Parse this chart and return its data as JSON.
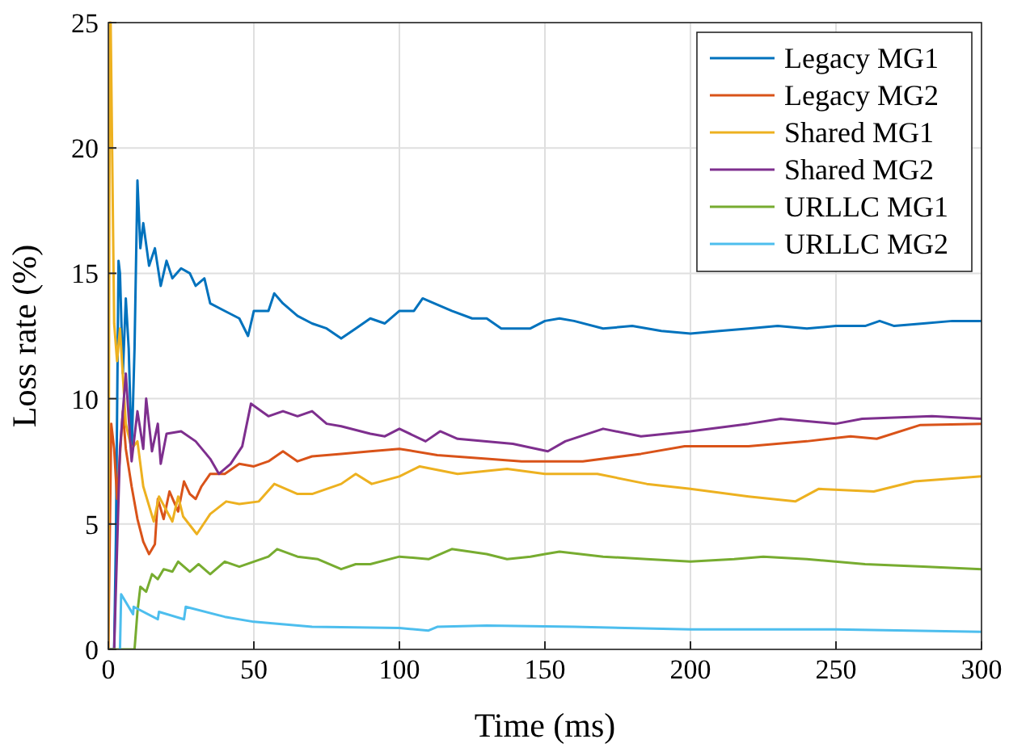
{
  "chart_data": {
    "type": "line",
    "xlabel": "Time (ms)",
    "ylabel": "Loss rate (%)",
    "xlim": [
      0,
      300
    ],
    "ylim": [
      0,
      25
    ],
    "xticks": [
      0,
      50,
      100,
      150,
      200,
      250,
      300
    ],
    "yticks": [
      0,
      5,
      10,
      15,
      20,
      25
    ],
    "grid": true,
    "legend": "top right",
    "line_style": "solid",
    "marker": "none",
    "series": [
      {
        "name": "Legacy MG1",
        "color": "#0072bd",
        "x": [
          0,
          2,
          2.6,
          3.5,
          4,
          5,
          6,
          7,
          8,
          9,
          10,
          11,
          12,
          14,
          16,
          18,
          20,
          22,
          25,
          28,
          30,
          33,
          35,
          40,
          45,
          48,
          50,
          55,
          57,
          60,
          65,
          70,
          75,
          80,
          85,
          90,
          95,
          100,
          105,
          108,
          112,
          118,
          125,
          130,
          135,
          145,
          150,
          155,
          160,
          170,
          180,
          190,
          200,
          210,
          220,
          230,
          240,
          250,
          260,
          265,
          270,
          280,
          290,
          300
        ],
        "values": [
          0,
          0,
          4.4,
          15.5,
          15,
          11,
          14,
          12,
          7.8,
          12,
          18.7,
          16,
          17,
          15.3,
          16,
          14.5,
          15.5,
          14.8,
          15.2,
          15,
          14.5,
          14.8,
          13.8,
          13.5,
          13.2,
          12.5,
          13.5,
          13.5,
          14.2,
          13.8,
          13.3,
          13,
          12.8,
          12.4,
          12.8,
          13.2,
          13,
          13.5,
          13.5,
          14,
          13.8,
          13.5,
          13.2,
          13.2,
          12.8,
          12.8,
          13.1,
          13.2,
          13.1,
          12.8,
          12.9,
          12.7,
          12.6,
          12.7,
          12.8,
          12.9,
          12.8,
          12.9,
          12.9,
          13.1,
          12.9,
          13,
          13.1,
          13.1
        ]
      },
      {
        "name": "Legacy MG2",
        "color": "#d95319",
        "x": [
          0,
          1,
          2,
          3,
          5,
          6,
          8,
          10,
          12,
          14,
          16,
          17,
          19,
          21,
          24,
          26,
          28,
          30,
          32,
          35,
          40,
          45,
          50,
          55,
          60,
          65,
          70,
          80,
          90,
          100,
          113,
          130,
          142,
          163,
          183,
          198,
          220,
          240,
          255,
          264,
          279,
          300
        ],
        "values": [
          0,
          9,
          8,
          6,
          9.5,
          8,
          6.5,
          5.2,
          4.3,
          3.8,
          4.2,
          6,
          5.2,
          6.3,
          5.5,
          6.7,
          6.2,
          6,
          6.5,
          7,
          7,
          7.4,
          7.3,
          7.5,
          7.9,
          7.5,
          7.7,
          7.8,
          7.9,
          8,
          7.75,
          7.6,
          7.5,
          7.5,
          7.8,
          8.1,
          8.1,
          8.3,
          8.5,
          8.4,
          8.95,
          9
        ]
      },
      {
        "name": "Shared MG1",
        "color": "#edb120",
        "x": [
          0,
          0.5,
          0.8,
          2,
          3,
          4,
          6,
          8,
          10,
          12,
          15.6,
          17.4,
          22,
          24,
          25.7,
          30.4,
          35,
          40.5,
          45,
          51.7,
          57,
          65,
          70,
          80,
          85,
          90.5,
          100,
          107,
          120,
          137,
          150,
          168,
          185,
          200,
          220,
          236,
          244,
          263,
          277,
          300
        ],
        "values": [
          0,
          25,
          25,
          13,
          11.5,
          12.8,
          9,
          8,
          8.3,
          6.5,
          5.1,
          6.1,
          5.1,
          6.1,
          5.3,
          4.6,
          5.4,
          5.9,
          5.8,
          5.9,
          6.6,
          6.2,
          6.2,
          6.6,
          7,
          6.6,
          6.9,
          7.3,
          7,
          7.2,
          7,
          7,
          6.6,
          6.4,
          6.1,
          5.9,
          6.4,
          6.3,
          6.7,
          6.9
        ]
      },
      {
        "name": "Shared MG2",
        "color": "#7e2f8e",
        "x": [
          0,
          2,
          3,
          4,
          6,
          8,
          10,
          12,
          13,
          15,
          17,
          18,
          20,
          25,
          30,
          35,
          38,
          42,
          46,
          49,
          55,
          60,
          65,
          70,
          75,
          80,
          90,
          95,
          100,
          109,
          114,
          120,
          139,
          151,
          157,
          170,
          183,
          200,
          220,
          231,
          250,
          259,
          283,
          300
        ],
        "values": [
          0,
          0,
          4,
          8,
          11,
          7.5,
          9.5,
          8,
          10,
          7.9,
          9,
          7.4,
          8.6,
          8.7,
          8.3,
          7.6,
          7,
          7.4,
          8.1,
          9.8,
          9.3,
          9.5,
          9.3,
          9.5,
          9,
          8.9,
          8.6,
          8.5,
          8.8,
          8.3,
          8.7,
          8.4,
          8.2,
          7.9,
          8.3,
          8.8,
          8.5,
          8.7,
          9,
          9.2,
          9,
          9.2,
          9.3,
          9.2
        ]
      },
      {
        "name": "URLLC MG1",
        "color": "#77ac30",
        "x": [
          0,
          9,
          10,
          11,
          13,
          15,
          17,
          19,
          22,
          24,
          28,
          31,
          35,
          40,
          45,
          50,
          55,
          58,
          65,
          72,
          80,
          85,
          90,
          100,
          110,
          118,
          130,
          137,
          145,
          150,
          155,
          170,
          185,
          200,
          215,
          225,
          240,
          260,
          280,
          300
        ],
        "values": [
          0,
          0,
          1.5,
          2.5,
          2.3,
          3,
          2.8,
          3.2,
          3.1,
          3.5,
          3.1,
          3.4,
          3,
          3.5,
          3.3,
          3.5,
          3.7,
          4,
          3.7,
          3.6,
          3.2,
          3.4,
          3.4,
          3.7,
          3.6,
          4,
          3.8,
          3.6,
          3.7,
          3.8,
          3.9,
          3.7,
          3.6,
          3.5,
          3.6,
          3.7,
          3.6,
          3.4,
          3.3,
          3.2
        ]
      },
      {
        "name": "URLLC MG2",
        "color": "#4dbeee",
        "x": [
          4,
          4.4,
          8.5,
          8.7,
          17,
          17.4,
          26,
          26.6,
          40,
          50,
          70,
          100,
          110,
          113,
          130,
          160,
          200,
          250,
          300
        ],
        "values": [
          0,
          2.2,
          1.4,
          1.7,
          1.2,
          1.5,
          1.2,
          1.7,
          1.3,
          1.1,
          0.9,
          0.85,
          0.75,
          0.9,
          0.95,
          0.9,
          0.8,
          0.8,
          0.7
        ]
      }
    ]
  }
}
